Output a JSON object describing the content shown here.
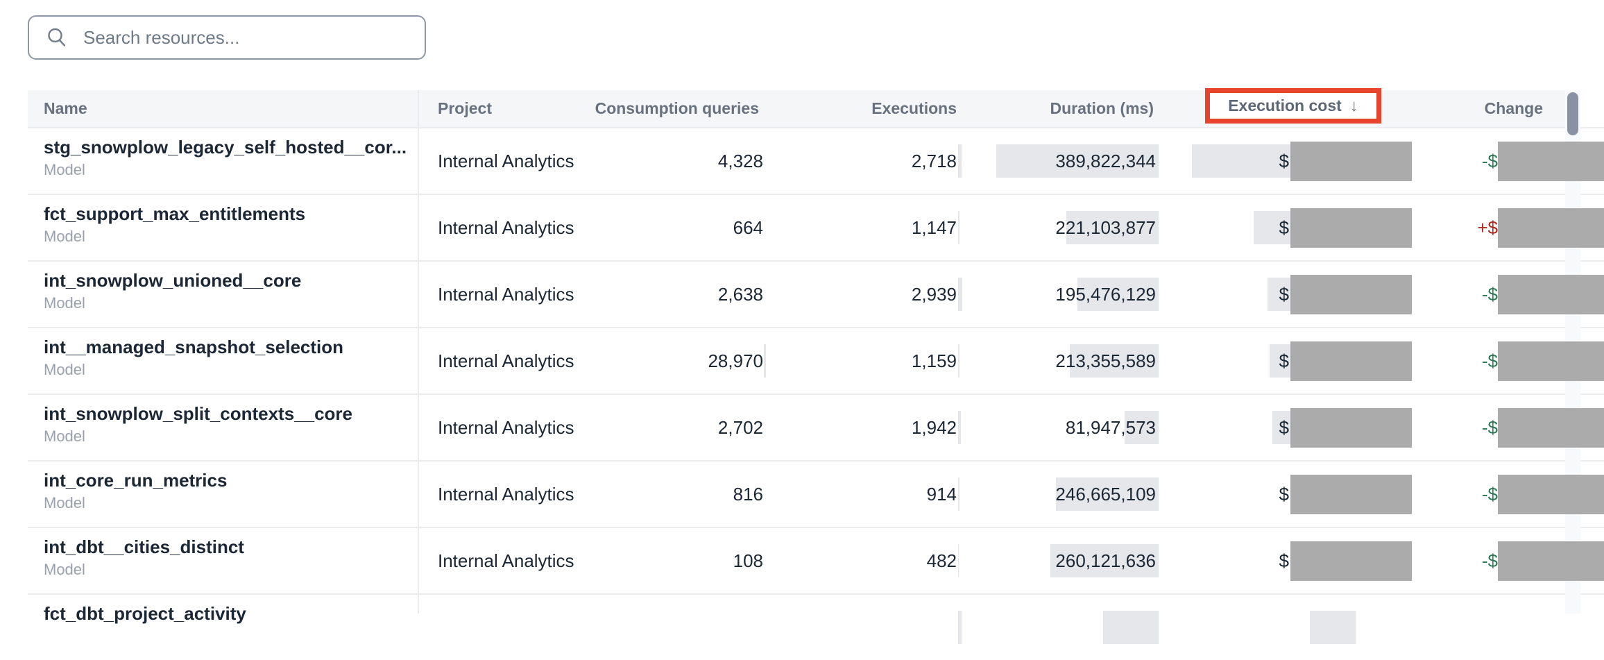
{
  "search": {
    "placeholder": "Search resources..."
  },
  "colors": {
    "decrease_sign": "#2c7a55",
    "increase_sign": "#b3271e",
    "annotation_box": "#e8432c",
    "redaction": "#ababab",
    "heat_bar": "#e5e7ea"
  },
  "annotation": {
    "type": "highlight-box",
    "target": "execution-cost-header"
  },
  "table": {
    "sort": {
      "column": "Execution cost",
      "direction": "desc",
      "icon": "↓"
    },
    "columns": [
      {
        "key": "name",
        "label": "Name"
      },
      {
        "key": "project",
        "label": "Project"
      },
      {
        "key": "consumption",
        "label": "Consumption queries"
      },
      {
        "key": "executions",
        "label": "Executions"
      },
      {
        "key": "duration",
        "label": "Duration (ms)"
      },
      {
        "key": "cost",
        "label": "Execution cost"
      },
      {
        "key": "change",
        "label": "Change"
      }
    ],
    "rows": [
      {
        "name": "stg_snowplow_legacy_self_hosted__cor...",
        "type": "Model",
        "project": "Internal Analytics",
        "consumption": "4,328",
        "executions": "2,718",
        "duration": "389,822,344",
        "cost_prefix": "$",
        "cost_redacted": true,
        "change_sign": "-$",
        "change_dir": "down",
        "change_redacted": true,
        "bars": {
          "consumption": 0,
          "executions": 5,
          "duration": 234,
          "cost": 236
        }
      },
      {
        "name": "fct_support_max_entitlements",
        "type": "Model",
        "project": "Internal Analytics",
        "consumption": "664",
        "executions": "1,147",
        "duration": "221,103,877",
        "cost_prefix": "$",
        "cost_redacted": true,
        "change_sign": "+$",
        "change_dir": "up",
        "change_redacted": true,
        "bars": {
          "consumption": 0,
          "executions": 2,
          "duration": 133,
          "cost": 147
        }
      },
      {
        "name": "int_snowplow_unioned__core",
        "type": "Model",
        "project": "Internal Analytics",
        "consumption": "2,638",
        "executions": "2,939",
        "duration": "195,476,129",
        "cost_prefix": "$",
        "cost_redacted": true,
        "change_sign": "-$",
        "change_dir": "down",
        "change_redacted": true,
        "bars": {
          "consumption": 0,
          "executions": 6,
          "duration": 117,
          "cost": 127
        }
      },
      {
        "name": "int__managed_snapshot_selection",
        "type": "Model",
        "project": "Internal Analytics",
        "consumption": "28,970",
        "executions": "1,159",
        "duration": "213,355,589",
        "cost_prefix": "$",
        "cost_redacted": true,
        "change_sign": "-$",
        "change_dir": "down",
        "change_redacted": true,
        "bars": {
          "consumption": 3,
          "executions": 2,
          "duration": 128,
          "cost": 124
        }
      },
      {
        "name": "int_snowplow_split_contexts__core",
        "type": "Model",
        "project": "Internal Analytics",
        "consumption": "2,702",
        "executions": "1,942",
        "duration": "81,947,573",
        "cost_prefix": "$",
        "cost_redacted": true,
        "change_sign": "-$",
        "change_dir": "down",
        "change_redacted": true,
        "bars": {
          "consumption": 0,
          "executions": 4,
          "duration": 49,
          "cost": 120
        }
      },
      {
        "name": "int_core_run_metrics",
        "type": "Model",
        "project": "Internal Analytics",
        "consumption": "816",
        "executions": "914",
        "duration": "246,665,109",
        "cost_prefix": "$",
        "cost_redacted": true,
        "change_sign": "-$",
        "change_dir": "down",
        "change_redacted": true,
        "bars": {
          "consumption": 0,
          "executions": 2,
          "duration": 148,
          "cost": 0
        }
      },
      {
        "name": "int_dbt__cities_distinct",
        "type": "Model",
        "project": "Internal Analytics",
        "consumption": "108",
        "executions": "482",
        "duration": "260,121,636",
        "cost_prefix": "$",
        "cost_redacted": true,
        "change_sign": "-$",
        "change_dir": "down",
        "change_redacted": true,
        "bars": {
          "consumption": 0,
          "executions": 1,
          "duration": 156,
          "cost": 0
        }
      },
      {
        "name": "fct_dbt_project_activity",
        "type": "",
        "project": "",
        "consumption": "",
        "executions": "",
        "duration": "",
        "cost_prefix": "",
        "cost_redacted": false,
        "change_sign": "",
        "change_dir": "none",
        "change_redacted": false,
        "bars": {
          "consumption": 0,
          "executions": 5,
          "duration": 80,
          "cost": 66
        }
      }
    ]
  }
}
